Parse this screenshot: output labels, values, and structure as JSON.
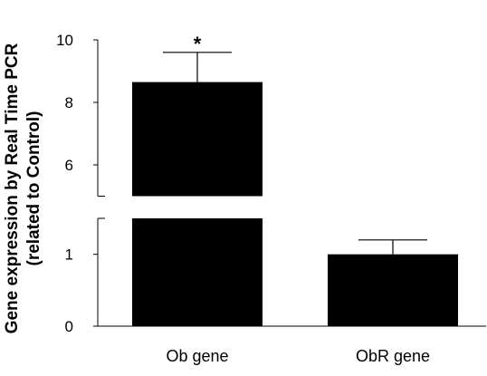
{
  "chart_data": {
    "type": "bar",
    "categories": [
      "Ob gene",
      "ObR gene"
    ],
    "values": [
      8.65,
      1.0
    ],
    "error_upper": [
      9.6,
      1.2
    ],
    "annotations": [
      "*",
      ""
    ],
    "ylabel_line1": "Gene expression by Real Time PCR",
    "ylabel_line2": "(related to Control)",
    "y_axis_break": true,
    "y_segments": [
      {
        "range": [
          0,
          1.5
        ],
        "ticks": [
          0,
          1
        ]
      },
      {
        "range": [
          5,
          10
        ],
        "ticks": [
          6,
          8,
          10
        ]
      }
    ],
    "grid": false,
    "bar_color": "#000000"
  }
}
